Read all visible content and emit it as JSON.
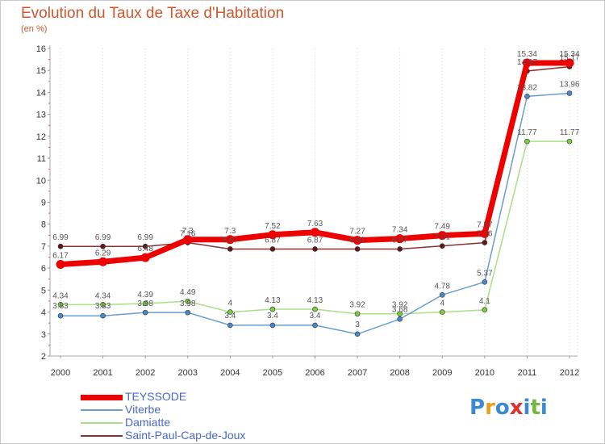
{
  "title": "Evolution du Taux de Taxe d'Habitation",
  "subtitle": "(en %)",
  "logo": {
    "letters": [
      "P",
      "r",
      "o",
      "x",
      "i",
      "t",
      "i"
    ],
    "colors": [
      "#3a8ad0",
      "#e8a020",
      "#3a8ad0",
      "#e03030",
      "#3a8ad0",
      "#70b840",
      "#3a8ad0"
    ]
  },
  "chart_data": {
    "type": "line",
    "x": [
      2000,
      2001,
      2002,
      2003,
      2004,
      2005,
      2006,
      2007,
      2008,
      2009,
      2010,
      2011,
      2012
    ],
    "xlabels": [
      "2000",
      "2001",
      "2002",
      "2003",
      "2004",
      "2005",
      "2006",
      "2007",
      "2008",
      "2009",
      "2010",
      "2011",
      "2012"
    ],
    "ylim": [
      2,
      16
    ],
    "yticks": [
      "2",
      "3",
      "4",
      "5",
      "6",
      "7",
      "8",
      "9",
      "10",
      "11",
      "12",
      "13",
      "14",
      "15",
      "16"
    ],
    "grid": {
      "vertical": true,
      "horizontal": false
    },
    "legend": "bottom-left",
    "series": [
      {
        "name": "TEYSSODE",
        "color": "#ee0000",
        "width": 7,
        "values": [
          6.17,
          6.29,
          6.48,
          7.3,
          7.3,
          7.52,
          7.63,
          7.27,
          7.34,
          7.49,
          7.57,
          15.34,
          15.34
        ],
        "labels": [
          "6.17",
          "6.29",
          "6.48",
          "7.3",
          "7.3",
          "7.52",
          "7.63",
          "7.27",
          "7.34",
          "7.49",
          "7.57",
          "15.34",
          "15.34"
        ]
      },
      {
        "name": "Viterbe",
        "color": "#6a9ecf",
        "width": 1.5,
        "marker": "#4a88c8",
        "values": [
          3.83,
          3.83,
          3.98,
          3.98,
          3.4,
          3.4,
          3.4,
          3.0,
          3.68,
          4.78,
          5.37,
          13.82,
          13.96
        ],
        "labels": [
          "3.83",
          "3.83",
          "3.98",
          "3.98",
          "3.4",
          "3.4",
          "3.4",
          "3",
          "3.68",
          "4.78",
          "5.37",
          "13.82",
          "13.96"
        ]
      },
      {
        "name": "Damiatte",
        "color": "#a8e088",
        "width": 1.5,
        "marker": "#7ccc44",
        "values": [
          4.34,
          4.34,
          4.39,
          4.49,
          4.0,
          4.13,
          4.13,
          3.92,
          3.92,
          4.0,
          4.1,
          11.77,
          11.77
        ],
        "labels": [
          "4.34",
          "4.34",
          "4.39",
          "4.49",
          "4",
          "4.13",
          "4.13",
          "3.92",
          "3.92",
          "4",
          "4.1",
          "11.77",
          "11.77"
        ]
      },
      {
        "name": "Saint-Paul-Cap-de-Joux",
        "color": "#8a3030",
        "width": 1.5,
        "marker": "#601818",
        "values": [
          6.99,
          6.99,
          6.99,
          7.16,
          6.87,
          6.87,
          6.87,
          6.87,
          6.87,
          7.01,
          7.16,
          14.97,
          15.17
        ],
        "labels": [
          "6.99",
          "6.99",
          "6.99",
          "7.16",
          "6.87",
          "6.87",
          "6.87",
          "6.87",
          "6.87",
          "7.01",
          "7.16",
          "14.97",
          "15.17"
        ]
      }
    ]
  }
}
